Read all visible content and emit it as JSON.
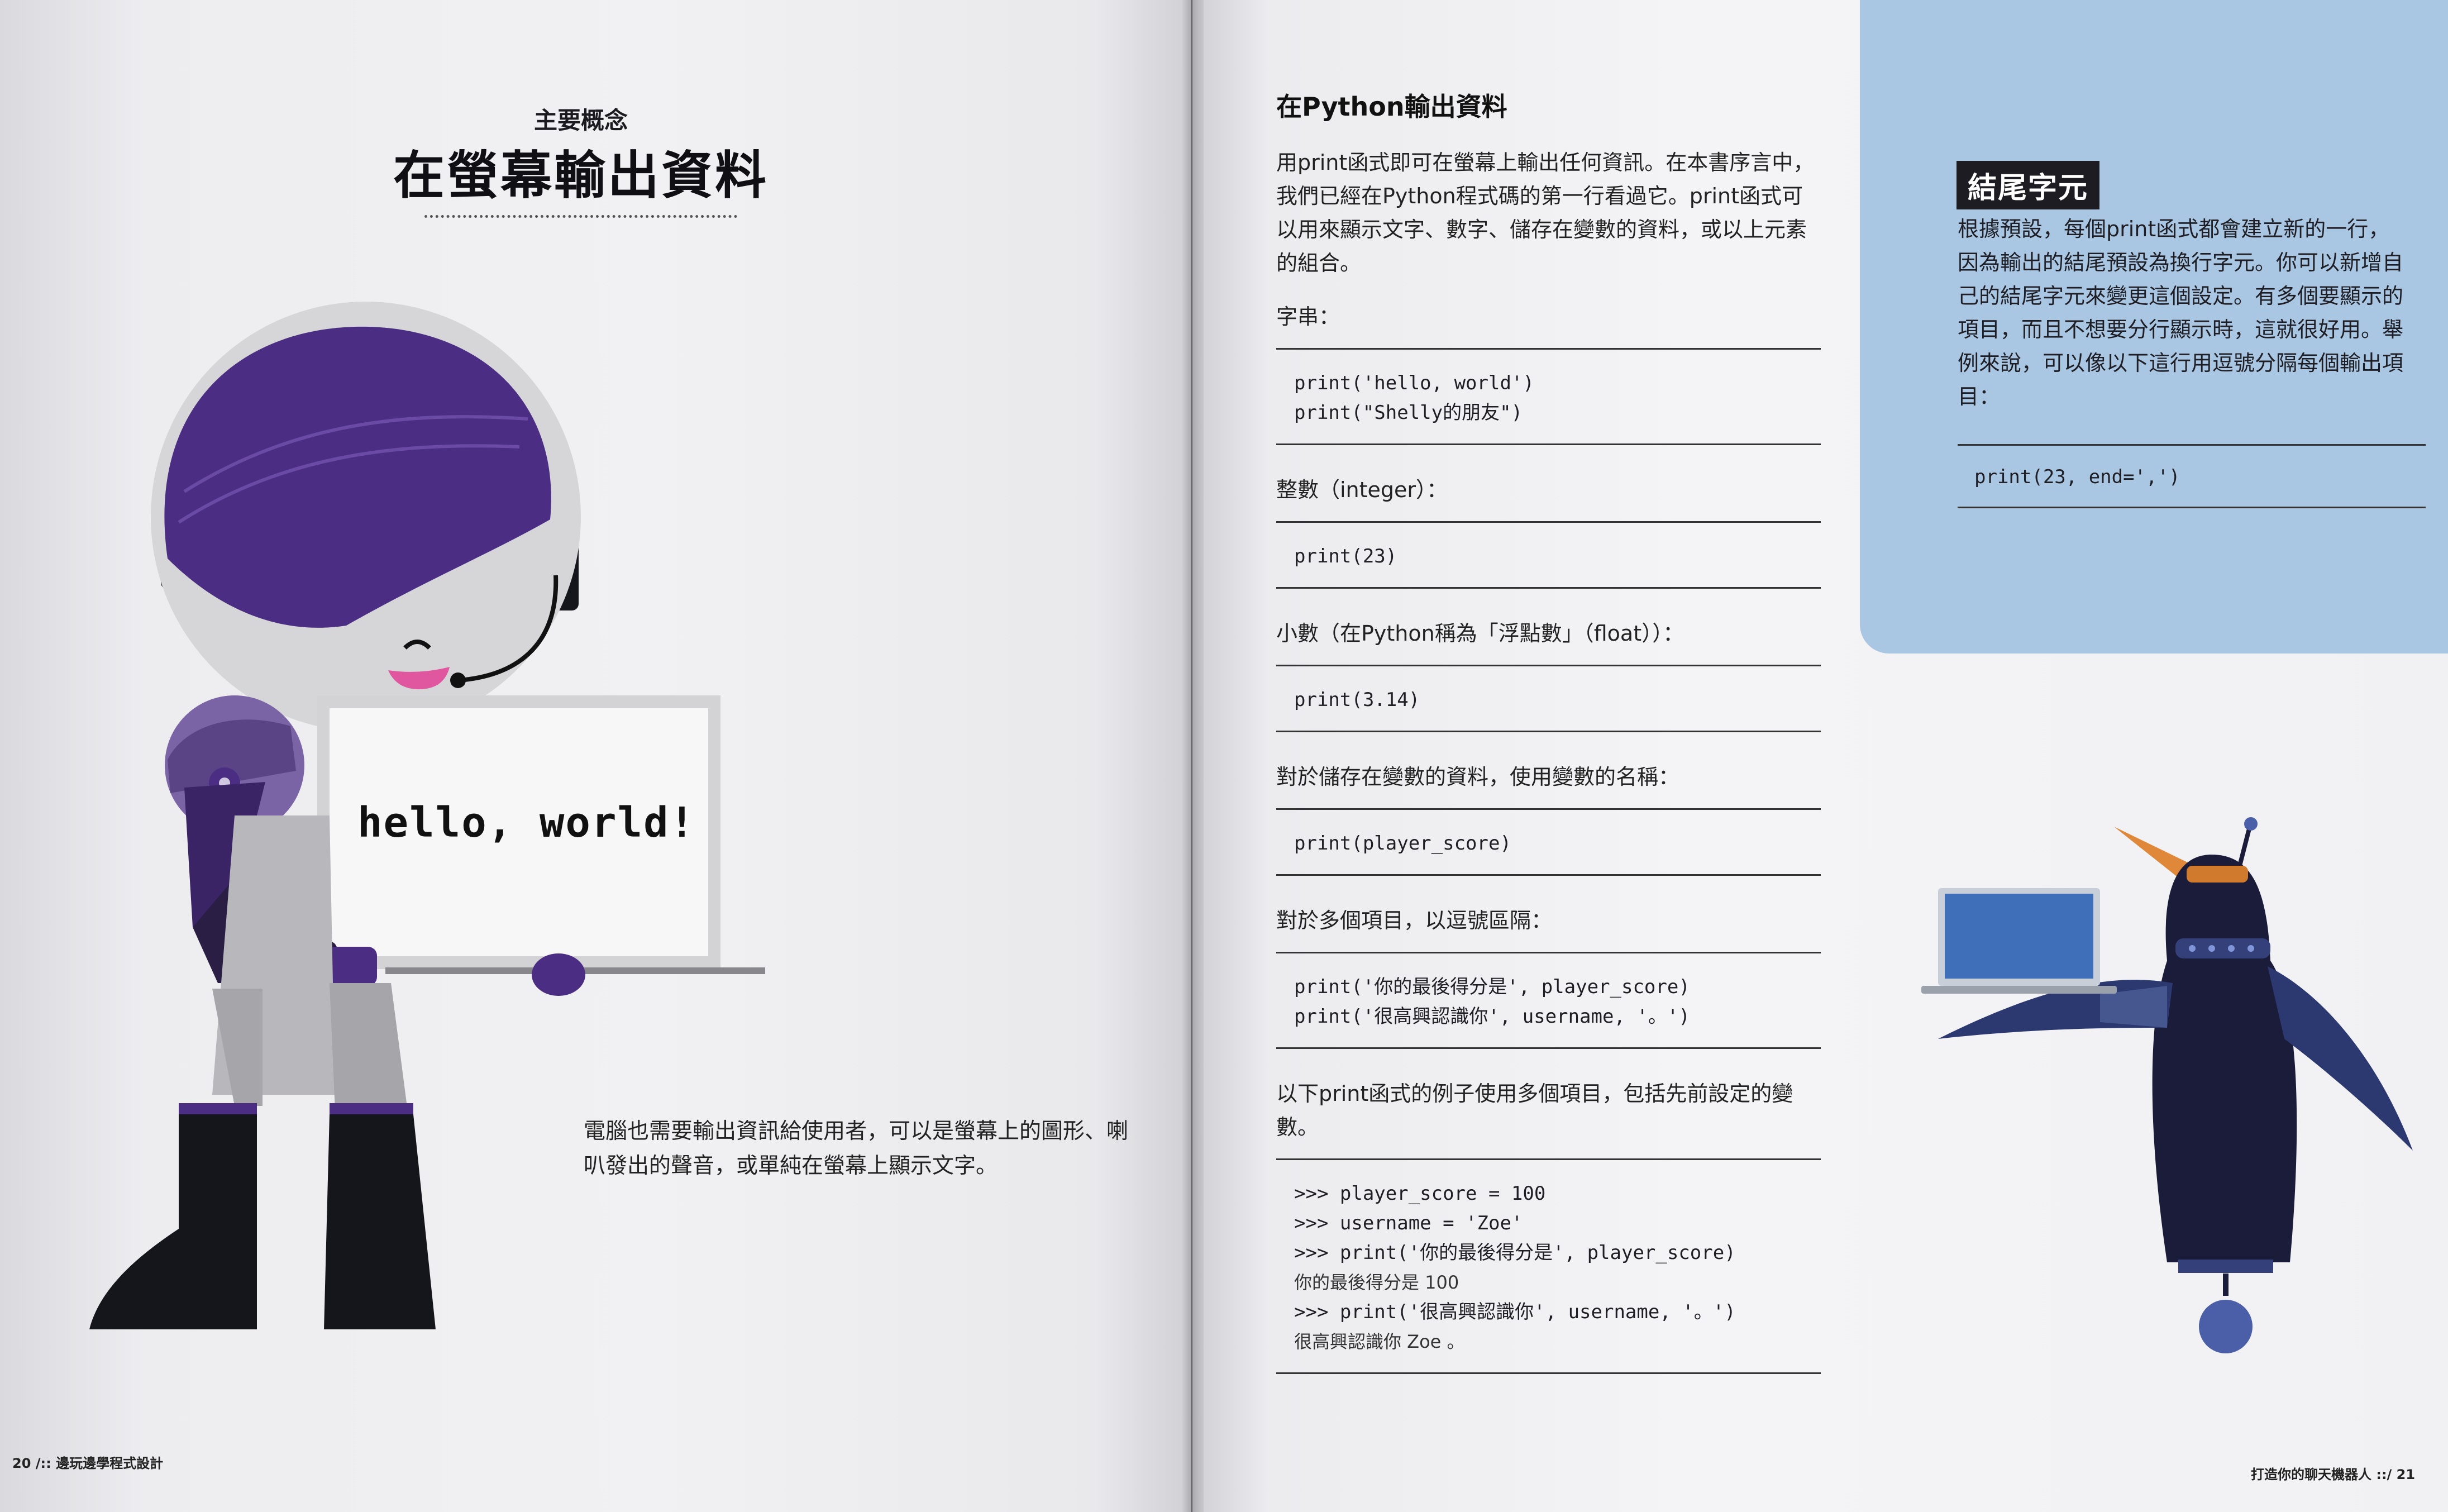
{
  "left_page": {
    "kicker": "主要概念",
    "title": "在螢幕輸出資料",
    "sign_text": "hello, world!",
    "intro": "電腦也需要輸出資訊給使用者，可以是螢幕上的圖形、喇叭發出的聲音，或單純在螢幕上顯示文字。",
    "footer": "20 /:: 邊玩邊學程式設計"
  },
  "right_page": {
    "heading": "在Python輸出資料",
    "intro": "用print函式即可在螢幕上輸出任何資訊。在本書序言中，我們已經在Python程式碼的第一行看過它。print函式可以用來顯示文字、數字、儲存在變數的資料，或以上元素的組合。",
    "sections": [
      {
        "label": "字串：",
        "code": [
          "print('hello, world')",
          "print(\"Shelly的朋友\")"
        ]
      },
      {
        "label": "整數（integer）：",
        "code": [
          "print(23)"
        ]
      },
      {
        "label": "小數（在Python稱為「浮點數」（float））：",
        "code": [
          "print(3.14)"
        ]
      },
      {
        "label": "對於儲存在變數的資料，使用變數的名稱：",
        "code": [
          "print(player_score)"
        ]
      },
      {
        "label": "對於多個項目，以逗號區隔：",
        "code": [
          "print('你的最後得分是', player_score)",
          "print('很高興認識你', username, '。')"
        ]
      }
    ],
    "example_label": "以下print函式的例子使用多個項目，包括先前設定的變數。",
    "example_lines": [
      ">>> player_score = 100",
      ">>> username = 'Zoe'",
      ">>> print('你的最後得分是', player_score)",
      "你的最後得分是 100",
      ">>> print('很高興認識你', username, '。')",
      "很高興認識你 Zoe 。"
    ],
    "footer": "打造你的聊天機器人 ::/ 21"
  },
  "sidebar": {
    "title": "結尾字元",
    "body": "根據預設，每個print函式都會建立新的一行，因為輸出的結尾預設為換行字元。你可以新增自己的結尾字元來變更這個設定。有多個要顯示的項目，而且不想要分行顯示時，這就很好用。舉例來說，可以像以下這行用逗號分隔每個輸出項目：",
    "code": "print(23, end=',')"
  },
  "colors": {
    "sidebar_bg": "#a9c6e3",
    "robot_hair": "#4b2e83",
    "robot_dark": "#2a1e45",
    "penguin_body": "#1b1b3a",
    "penguin_beak": "#e0883a",
    "laptop_screen": "#3f6fb8"
  }
}
